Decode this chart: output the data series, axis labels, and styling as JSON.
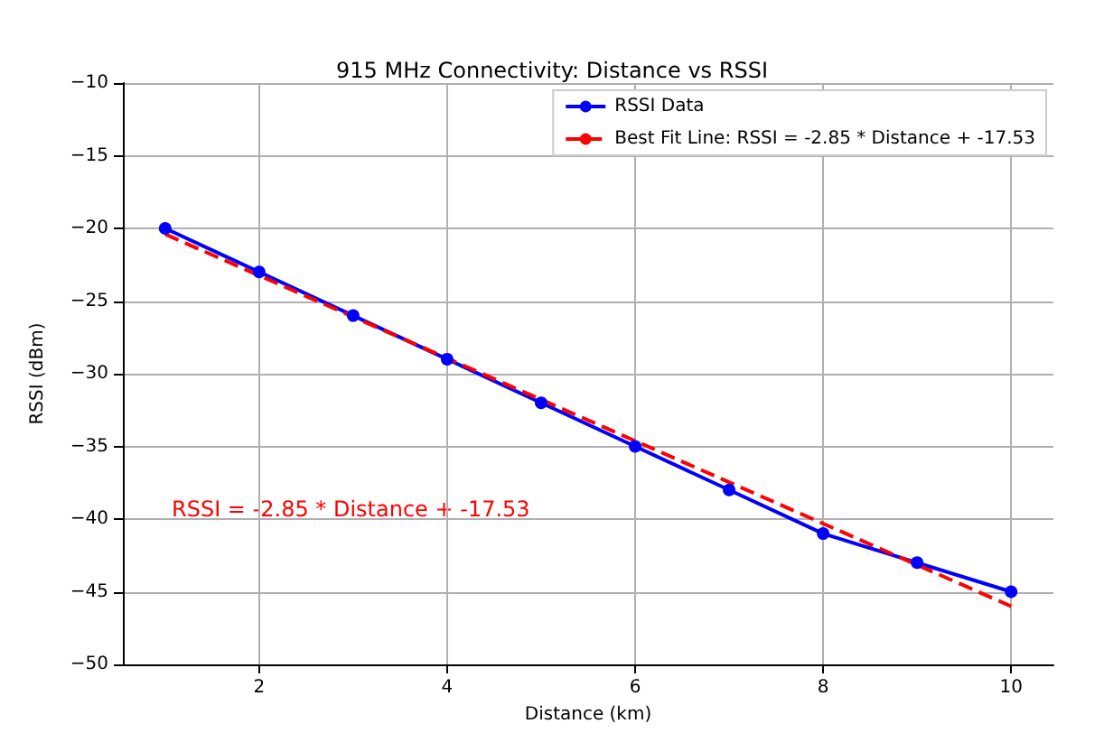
{
  "chart_data": {
    "type": "line",
    "title": "915 MHz Connectivity: Distance vs RSSI",
    "xlabel": "Distance (km)",
    "ylabel": "RSSI (dBm)",
    "x": [
      1,
      2,
      3,
      4,
      5,
      6,
      7,
      8,
      9,
      10
    ],
    "series": [
      {
        "name": "RSSI Data",
        "color": "#0000ff",
        "values": [
          -20,
          -23,
          -26,
          -29,
          -32,
          -35,
          -38,
          -41,
          -43,
          -45
        ],
        "marker": "circle",
        "line_style": "solid"
      },
      {
        "name": "Best Fit Line: RSSI = -2.85 * Distance + -17.53",
        "color": "#ff0000",
        "x": [
          1,
          10
        ],
        "values": [
          -20.4,
          -46.0
        ],
        "marker": "none",
        "line_style": "dashed"
      }
    ],
    "xlim": [
      0.55,
      10.45
    ],
    "xticks": [
      2,
      4,
      6,
      8,
      10
    ],
    "ylim": [
      -50,
      -10
    ],
    "yticks": [
      -50,
      -45,
      -40,
      -35,
      -30,
      -25,
      -20,
      -15,
      -10
    ],
    "grid": true,
    "legend": "top right",
    "annotations": [
      "RSSI = -2.85 * Distance + -17.53"
    ]
  }
}
